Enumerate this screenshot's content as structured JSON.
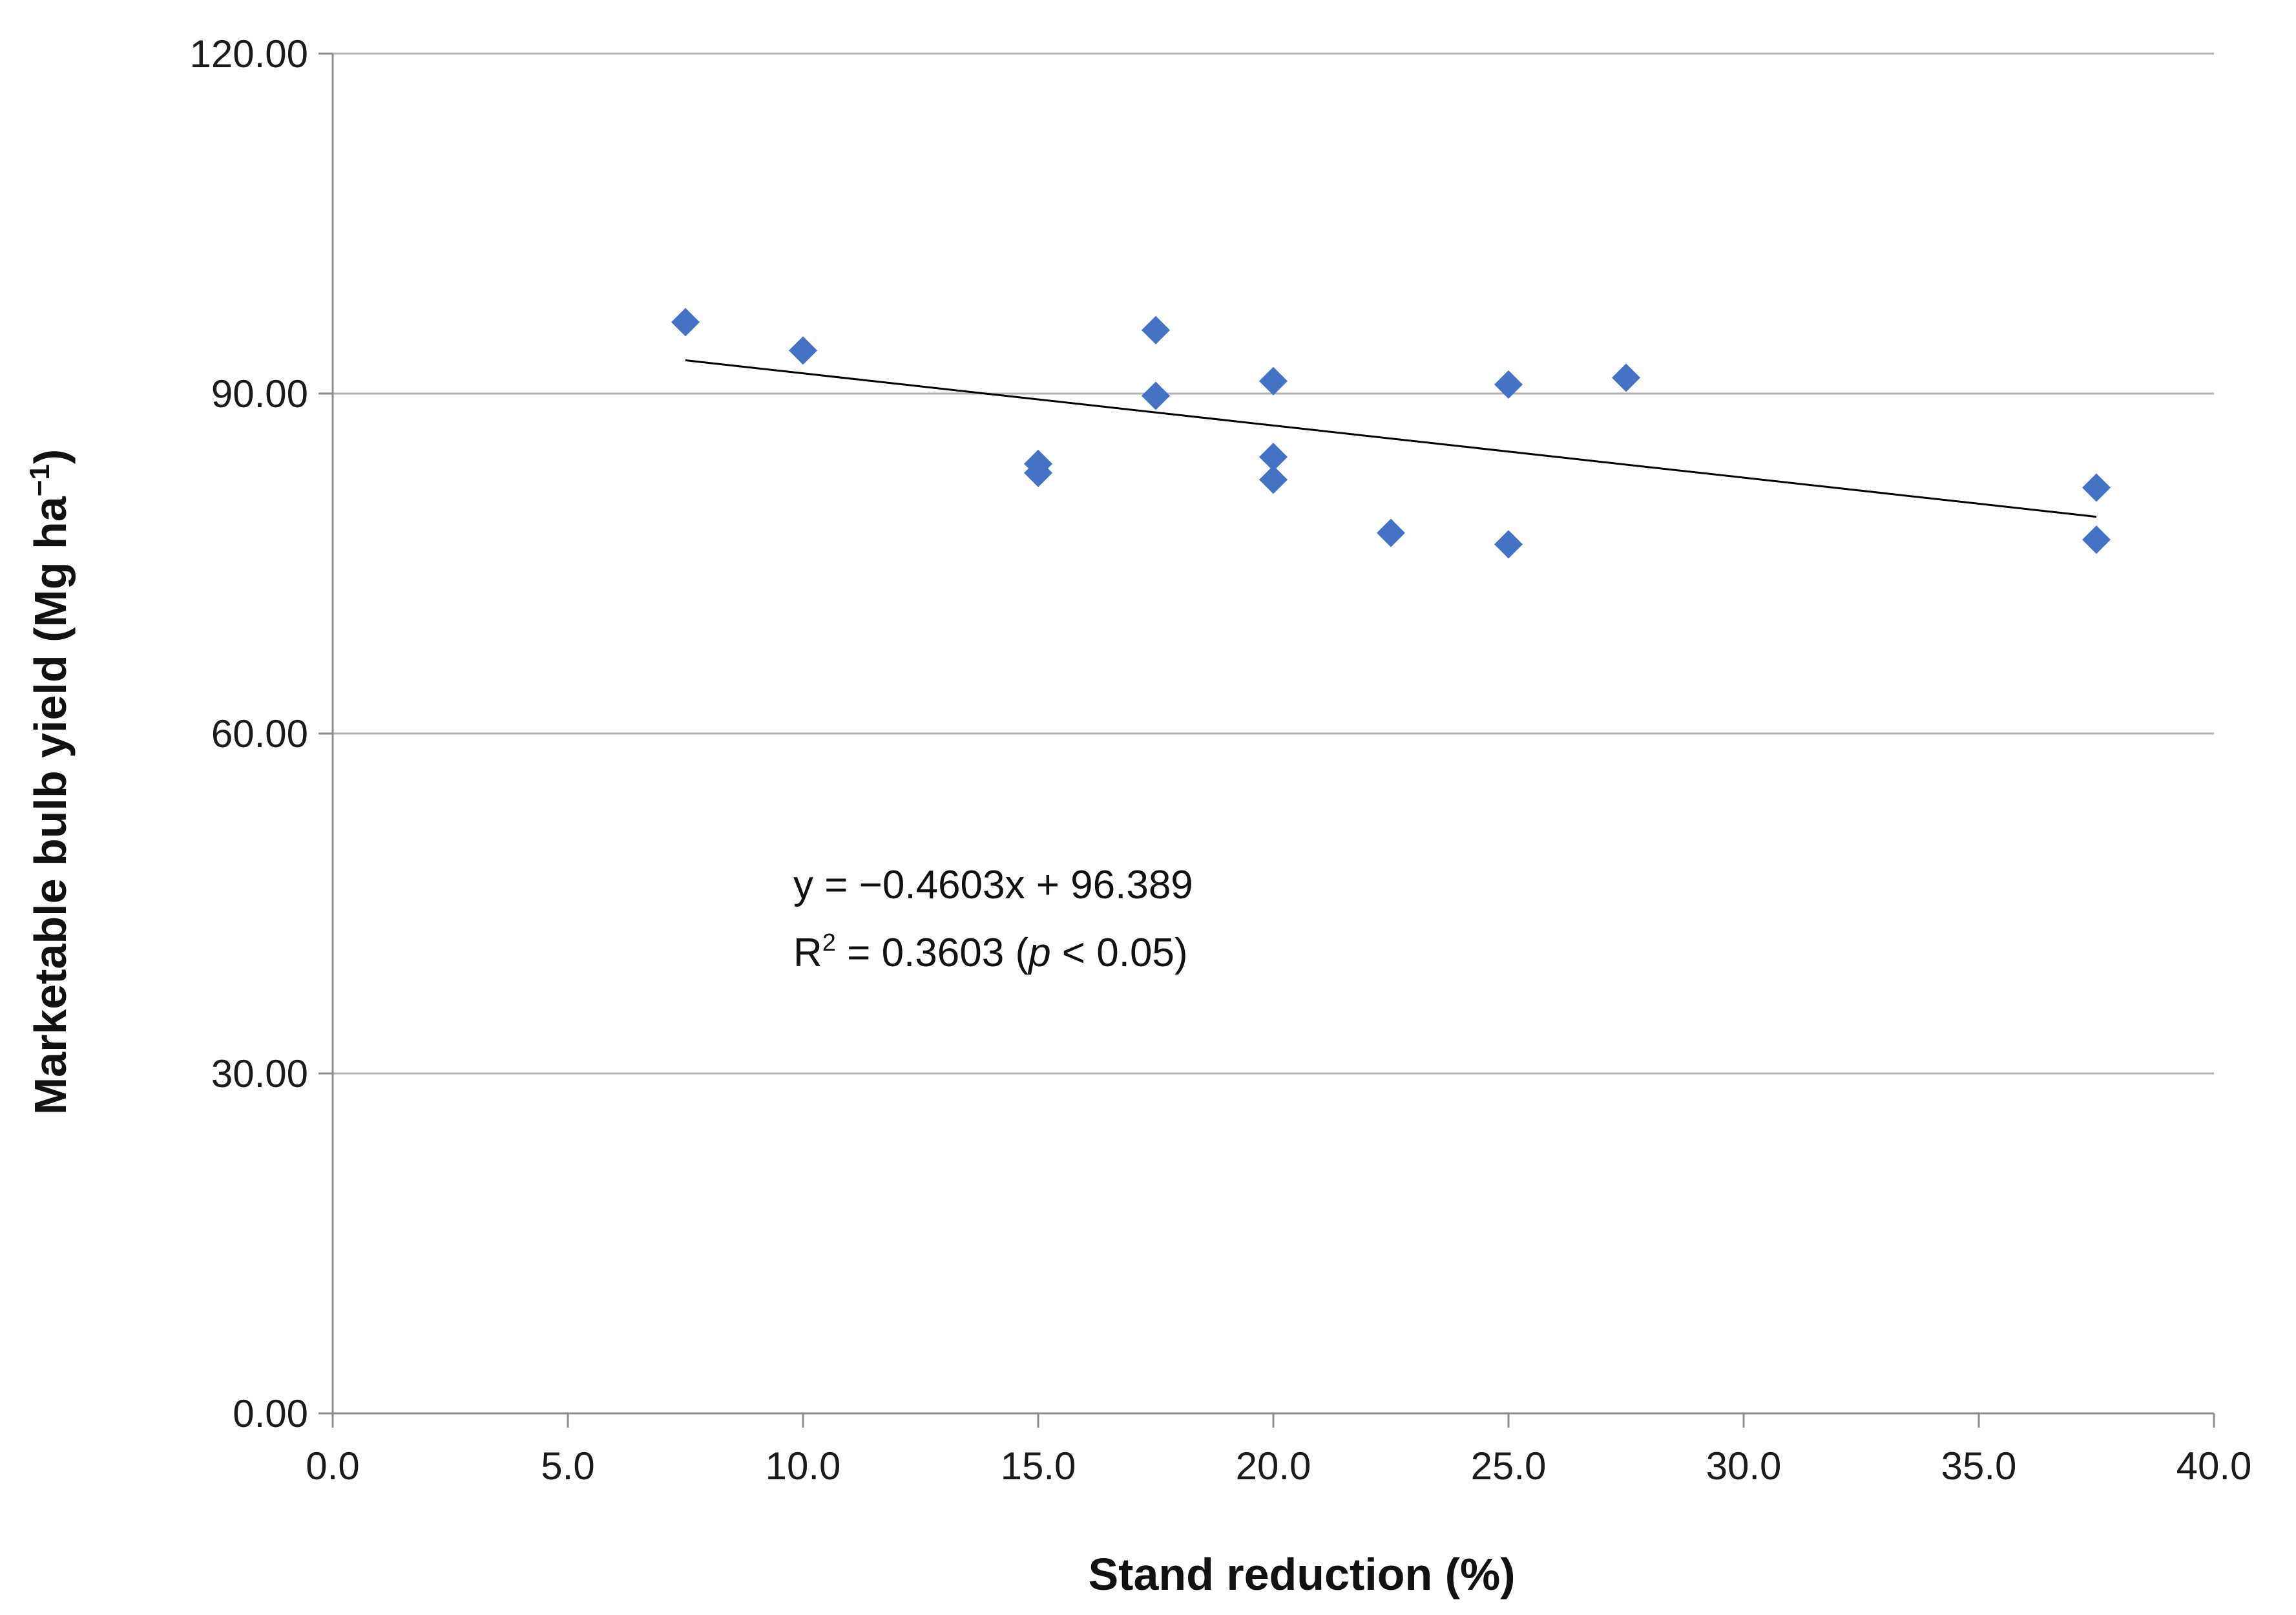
{
  "chart_data": {
    "type": "scatter",
    "xlabel": "Stand reduction (%)",
    "ylabel": {
      "main": "Marketable bulb yield (Mg ha",
      "superscript": "−1",
      "close": ")"
    },
    "xlim": [
      0,
      40
    ],
    "ylim": [
      0,
      120
    ],
    "x_ticks": [
      "0.0",
      "5.0",
      "10.0",
      "15.0",
      "20.0",
      "25.0",
      "30.0",
      "35.0",
      "40.0"
    ],
    "y_ticks": [
      "0.00",
      "30.00",
      "60.00",
      "90.00",
      "120.00"
    ],
    "grid": {
      "horizontal": true,
      "vertical": false
    },
    "marker_color": "#4472C4",
    "line_color": "#000000",
    "points": [
      {
        "x": 7.5,
        "y": 96.3
      },
      {
        "x": 10.0,
        "y": 93.8
      },
      {
        "x": 15.0,
        "y": 83.8
      },
      {
        "x": 15.0,
        "y": 83.0
      },
      {
        "x": 17.5,
        "y": 95.6
      },
      {
        "x": 17.5,
        "y": 89.8
      },
      {
        "x": 20.0,
        "y": 91.1
      },
      {
        "x": 20.0,
        "y": 84.4
      },
      {
        "x": 20.0,
        "y": 82.4
      },
      {
        "x": 22.5,
        "y": 77.7
      },
      {
        "x": 25.0,
        "y": 90.8
      },
      {
        "x": 25.0,
        "y": 76.7
      },
      {
        "x": 27.5,
        "y": 91.4
      },
      {
        "x": 37.5,
        "y": 81.7
      },
      {
        "x": 37.5,
        "y": 77.1
      }
    ],
    "trendline": {
      "slope": -0.4603,
      "intercept": 96.389,
      "x_range": [
        7.5,
        37.5
      ]
    },
    "annotation": {
      "equation": "y = −0.4603x + 96.389",
      "r2_prefix": "R",
      "r2_sup": "2",
      "r2_value": " = 0.3603 (",
      "p_symbol": "p",
      "p_rest": " < 0.05)"
    }
  }
}
